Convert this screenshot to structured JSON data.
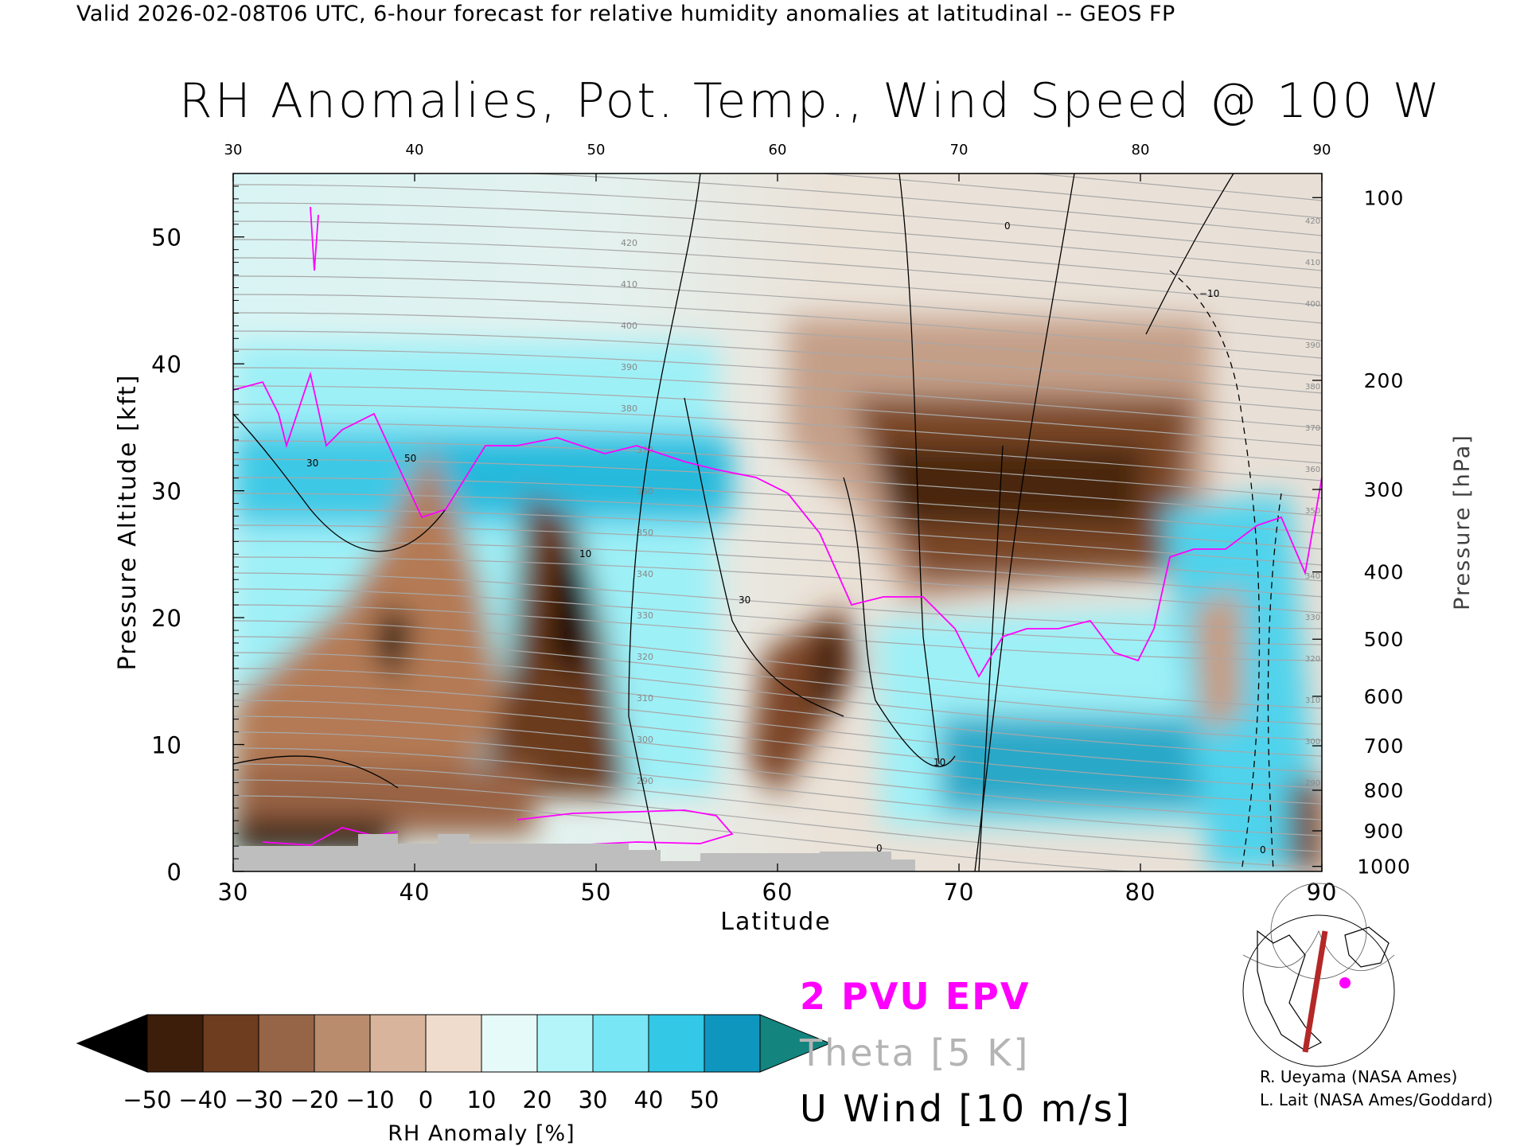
{
  "header": {
    "valid_line": "Valid 2026-02-08T06 UTC, 6-hour forecast for relative humidity anomalies at latitudinal -- GEOS FP"
  },
  "chart_data": {
    "type": "heatmap",
    "title": "RH Anomalies, Pot. Temp., Wind Speed @ 100 W",
    "xlabel": "Latitude",
    "ylabel_left": "Pressure Altitude [kft]",
    "ylabel_right": "Pressure [hPa]",
    "xlim": [
      30,
      90
    ],
    "ylim": [
      0,
      55
    ],
    "x_ticks": [
      30,
      40,
      50,
      60,
      70,
      80,
      90
    ],
    "y_ticks": [
      0,
      10,
      20,
      30,
      40,
      50
    ],
    "pressure_ticks": [
      {
        "hpa": "100",
        "kft": 53.1
      },
      {
        "hpa": "200",
        "kft": 38.7
      },
      {
        "hpa": "300",
        "kft": 30.1
      },
      {
        "hpa": "400",
        "kft": 23.6
      },
      {
        "hpa": "500",
        "kft": 18.3
      },
      {
        "hpa": "600",
        "kft": 13.8
      },
      {
        "hpa": "700",
        "kft": 9.9
      },
      {
        "hpa": "800",
        "kft": 6.4
      },
      {
        "hpa": "900",
        "kft": 3.2
      },
      {
        "hpa": "1000",
        "kft": 0.4
      }
    ],
    "colorbar": {
      "label": "RH Anomaly [%]",
      "ticks": [
        "−50",
        "−40",
        "−30",
        "−20",
        "−10",
        "0",
        "10",
        "20",
        "30",
        "40",
        "50"
      ],
      "colors": [
        "#000000",
        "#3c1e0a",
        "#6e3c1e",
        "#966446",
        "#b98c6e",
        "#d7b49b",
        "#f0dccd",
        "#e6fafa",
        "#b4f5fa",
        "#78e6f5",
        "#32c8e6",
        "#0f96be"
      ],
      "under_color": "#000000",
      "over_color": "#14847f"
    },
    "theta_contour_labels": [
      "290",
      "300",
      "310",
      "320",
      "330",
      "340",
      "350",
      "360",
      "370",
      "380",
      "390",
      "400",
      "410",
      "420"
    ],
    "wind_contour_labels": [
      "0",
      "10",
      "30",
      "50",
      "−10"
    ],
    "legend": [
      {
        "label": "2 PVU EPV",
        "color": "#ff00ff"
      },
      {
        "label": "Theta [5 K]",
        "color": "#b4b4b4"
      },
      {
        "label": "U Wind [10 m/s]",
        "color": "#000000"
      }
    ],
    "terrain_color": "#bebebe",
    "inset_map": {
      "type": "polar-map",
      "cross_section_color": "#b42828",
      "marker_color": "#ff00ff"
    }
  },
  "credits": {
    "line1": "R. Ueyama (NASA Ames)",
    "line2": "L. Lait (NASA Ames/Goddard)"
  }
}
